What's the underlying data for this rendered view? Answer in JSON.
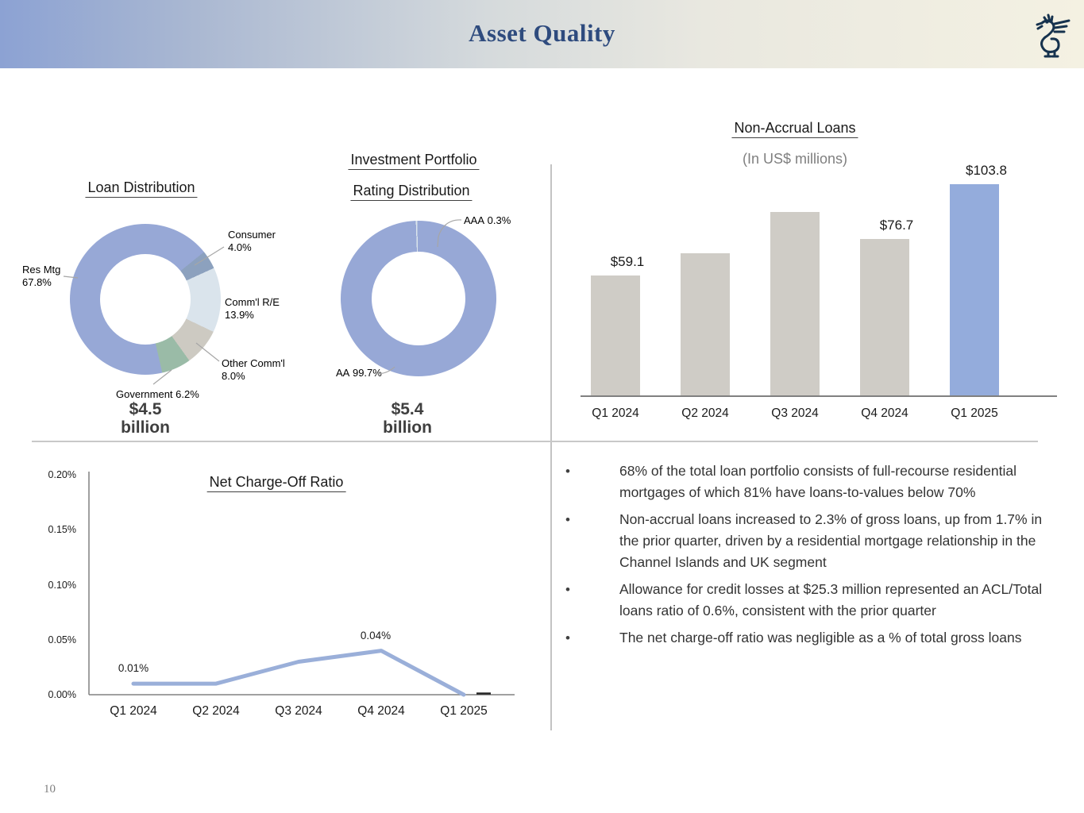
{
  "header": {
    "title": "Asset Quality"
  },
  "page_number": "10",
  "colors": {
    "header_gradient_left": "#8CA2D3",
    "header_gradient_right": "#F4F1E2",
    "title_navy": "#2E4B7E",
    "logo_navy": "#16324E",
    "accent_periwinkle": "#97A8D6",
    "bar_gray": "#CFCCC6",
    "bar_highlight_blue": "#94ACDC",
    "axis_gray": "#808080",
    "divider_gray": "#C3C3C3"
  },
  "chart_data": [
    {
      "type": "pie",
      "donut": true,
      "title": "Loan Distribution",
      "center_value": "$4.5",
      "center_unit": "billion",
      "slices": [
        {
          "label": "Res Mtg",
          "pct": "67.8%",
          "value": 67.8,
          "color": "#97A8D6"
        },
        {
          "label": "Consumer",
          "pct": "4.0%",
          "value": 4.0,
          "color": "#8CA1BE"
        },
        {
          "label": "Comm'l R/E",
          "pct": "13.9%",
          "value": 13.9,
          "color": "#DAE4EC"
        },
        {
          "label": "Other Comm'l",
          "pct": "8.0%",
          "value": 8.0,
          "color": "#CDCAC2"
        },
        {
          "label": "Government",
          "pct": "6.2%",
          "value": 6.2,
          "color": "#9ABBA7"
        }
      ]
    },
    {
      "type": "pie",
      "donut": true,
      "title_line1": "Investment Portfolio",
      "title_line2": "Rating Distribution",
      "center_value": "$5.4",
      "center_unit": "billion",
      "slices": [
        {
          "label": "AAA",
          "pct": "0.3%",
          "value": 0.3,
          "color": "#DAE4EC"
        },
        {
          "label": "AA",
          "pct": "99.7%",
          "value": 99.7,
          "color": "#97A8D6"
        }
      ]
    },
    {
      "type": "bar",
      "title": "Non-Accrual Loans",
      "subtitle": "(In US$ millions)",
      "categories": [
        "Q1 2024",
        "Q2 2024",
        "Q3 2024",
        "Q4 2024",
        "Q1 2025"
      ],
      "values": [
        59.1,
        70,
        90,
        76.7,
        103.8
      ],
      "data_labels": [
        "$59.1",
        "",
        "",
        "$76.7",
        "$103.8"
      ],
      "highlight_index": 4,
      "ylim": [
        0,
        110
      ],
      "legend": "none",
      "grid": false
    },
    {
      "type": "line",
      "title": "Net Charge-Off Ratio",
      "categories": [
        "Q1 2024",
        "Q2 2024",
        "Q3 2024",
        "Q4 2024",
        "Q1 2025"
      ],
      "values": [
        0.01,
        0.01,
        0.03,
        0.04,
        0.0
      ],
      "data_labels": [
        "0.01%",
        "",
        "",
        "0.04%",
        ""
      ],
      "yticks": [
        "0.00%",
        "0.05%",
        "0.10%",
        "0.15%",
        "0.20%"
      ],
      "ylim": [
        0,
        0.2
      ],
      "line_color": "#9AAFD9",
      "legend": "none",
      "grid": false
    }
  ],
  "bullets": [
    "68% of the total loan portfolio consists of full-recourse residential mortgages of which 81% have loans-to-values below 70%",
    "Non-accrual loans increased to 2.3% of gross loans, up from 1.7% in the prior quarter, driven by a residential mortgage relationship in the Channel Islands and UK segment",
    "Allowance for credit losses at $25.3 million represented an ACL/Total loans ratio of 0.6%, consistent with the prior quarter",
    "The net charge-off ratio was negligible as a % of total gross loans"
  ]
}
